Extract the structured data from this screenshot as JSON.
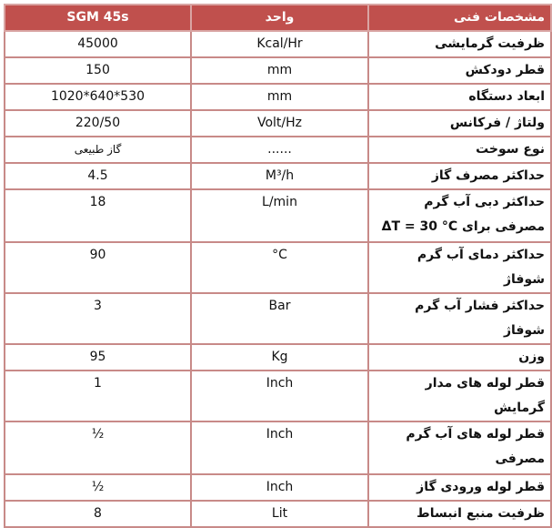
{
  "header": {
    "model": "SGM 45s",
    "unit": "واحد",
    "spec": "مشخصات فنی"
  },
  "rows": [
    {
      "spec": "ظرفیت گرمایشی",
      "unit": "Kcal/Hr",
      "value": "45000"
    },
    {
      "spec": "قطر دودکش",
      "unit": "mm",
      "value": "150"
    },
    {
      "spec": "ابعاد دستگاه",
      "unit": "mm",
      "value": "1020*640*530"
    },
    {
      "spec": "ولتاژ / فرکانس",
      "unit": "Volt/Hz",
      "value": "220/50"
    },
    {
      "spec": "نوع سوخت",
      "unit": "......",
      "value": "گاز طبیعی"
    },
    {
      "spec": "حداکثر مصرف گاز",
      "unit": "M³/h",
      "value": "4.5"
    },
    {
      "spec": "حداکثر دبی آب گرم مصرفی برای ΔT = 30 °C",
      "unit": "L/min",
      "value": "18"
    },
    {
      "spec": "حداکثر دمای آب گرم شوفاژ",
      "unit": "°C",
      "value": "90"
    },
    {
      "spec": "حداکثر فشار آب گرم شوفاژ",
      "unit": "Bar",
      "value": "3"
    },
    {
      "spec": "وزن",
      "unit": "Kg",
      "value": "95"
    },
    {
      "spec": "قطر لوله های مدار گرمایش",
      "unit": "Inch",
      "value": "1"
    },
    {
      "spec": "قطر لوله های آب گرم مصرفی",
      "unit": "Inch",
      "value": "½"
    },
    {
      "spec": "قطر لوله ورودی گاز",
      "unit": "Inch",
      "value": "½"
    },
    {
      "spec": "ظرفیت منبع انبساط",
      "unit": "Lit",
      "value": "8"
    }
  ]
}
